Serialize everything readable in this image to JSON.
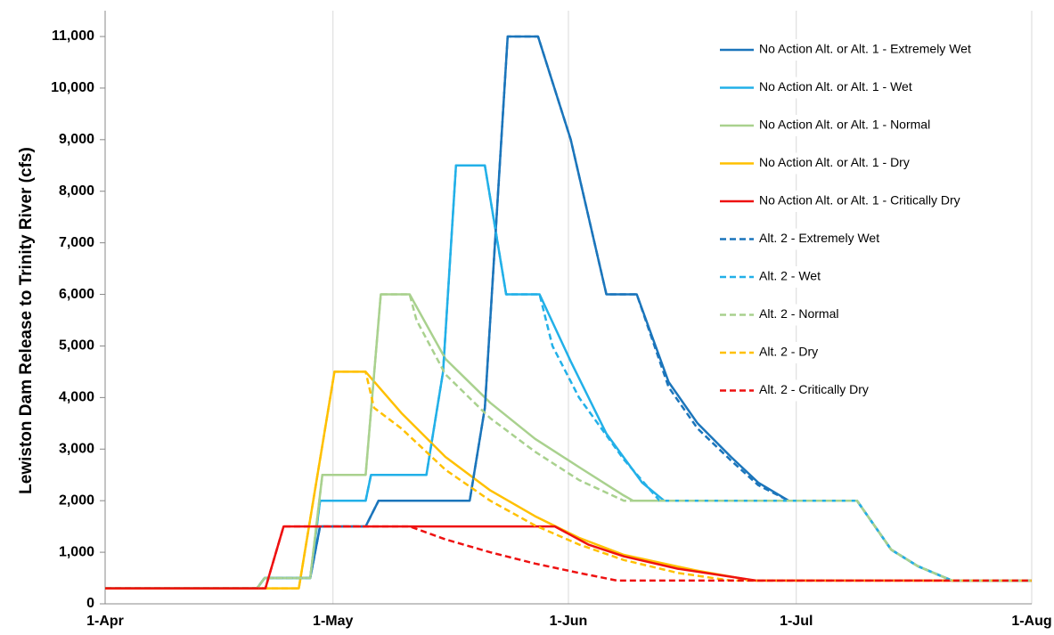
{
  "chart_data": {
    "type": "line",
    "y_label": "Lewiston Dam Release to Trinity River (cfs)",
    "xlim": [
      0,
      122
    ],
    "ylim": [
      0,
      11000
    ],
    "xticks": [
      {
        "value": 0,
        "label": "1-Apr"
      },
      {
        "value": 30,
        "label": "1-May"
      },
      {
        "value": 61,
        "label": "1-Jun"
      },
      {
        "value": 91,
        "label": "1-Jul"
      },
      {
        "value": 122,
        "label": "1-Aug"
      }
    ],
    "yticks": [
      0,
      {
        "value": 1000,
        "label": "1,000"
      },
      {
        "value": 2000,
        "label": "2,000"
      },
      {
        "value": 3000,
        "label": "3,000"
      },
      {
        "value": 4000,
        "label": "4,000"
      },
      {
        "value": 5000,
        "label": "5,000"
      },
      {
        "value": 6000,
        "label": "6,000"
      },
      {
        "value": 7000,
        "label": "7,000"
      },
      {
        "value": 8000,
        "label": "8,000"
      },
      {
        "value": 9000,
        "label": "9,000"
      },
      {
        "value": 10000,
        "label": "10,000"
      },
      {
        "value": 11000,
        "label": "11,000"
      }
    ],
    "grid": "x",
    "legend": "top-right",
    "series": [
      {
        "name": "No Action Alt. or Alt. 1 - Extremely Wet",
        "color": "#1b75bb",
        "line_style": "solid",
        "x": [
          0,
          20,
          21,
          27,
          28.3,
          34.3,
          36,
          48,
          50,
          53,
          57,
          61.3,
          66,
          70,
          74.2,
          78,
          82.4,
          86,
          90,
          99,
          103.5,
          107,
          111.5,
          122
        ],
        "values": [
          300,
          300,
          500,
          500,
          1500,
          1500,
          2000,
          2000,
          3800,
          11000,
          11000,
          9000,
          6000,
          6000,
          4300,
          3500,
          2850,
          2350,
          2000,
          2000,
          1050,
          730,
          450,
          450
        ]
      },
      {
        "name": "No Action Alt. or Alt. 1 - Wet",
        "color": "#22b0e8",
        "line_style": "solid",
        "x": [
          0,
          20,
          21,
          27,
          28.3,
          34.3,
          35,
          42.3,
          44.5,
          46.2,
          50,
          52.8,
          57.2,
          61.3,
          66,
          70.7,
          73.6,
          99,
          103.5,
          107,
          111.5,
          122
        ],
        "values": [
          300,
          300,
          500,
          500,
          2000,
          2000,
          2500,
          2500,
          4500,
          8500,
          8500,
          6000,
          6000,
          4700,
          3300,
          2350,
          2000,
          2000,
          1050,
          730,
          450,
          450
        ]
      },
      {
        "name": "No Action Alt. or Alt. 1 - Normal",
        "color": "#a9d18e",
        "line_style": "solid",
        "x": [
          0,
          20,
          21,
          27,
          28.6,
          34.3,
          36.3,
          40.1,
          44.8,
          50.7,
          56.6,
          62.4,
          68.3,
          69.5,
          99,
          103.5,
          107,
          111.5,
          122
        ],
        "values": [
          300,
          300,
          500,
          500,
          2500,
          2500,
          6000,
          6000,
          4750,
          3900,
          3200,
          2650,
          2100,
          2000,
          2000,
          1050,
          730,
          450,
          450
        ]
      },
      {
        "name": "No Action Alt. or Alt. 1 - Dry",
        "color": "#ffc000",
        "line_style": "solid",
        "x": [
          0,
          25.5,
          30.2,
          34.3,
          39,
          44.8,
          50.7,
          56.6,
          62.4,
          68.3,
          77.7,
          85.3,
          122
        ],
        "values": [
          300,
          300,
          4500,
          4500,
          3700,
          2850,
          2200,
          1700,
          1280,
          950,
          650,
          450,
          450
        ]
      },
      {
        "name": "No Action Alt. or Alt. 1 - Critically Dry",
        "color": "#ee1111",
        "line_style": "solid",
        "x": [
          0,
          21.1,
          23.5,
          59.2,
          63.6,
          68.3,
          75.4,
          85.7,
          122
        ],
        "values": [
          300,
          300,
          1500,
          1500,
          1150,
          920,
          680,
          450,
          450
        ]
      },
      {
        "name": "Alt. 2 - Extremely Wet",
        "color": "#1b75bb",
        "line_style": "dashed",
        "x": [
          0,
          20,
          21,
          27,
          28.3,
          34.3,
          36,
          48,
          50,
          53,
          57,
          61.3,
          66,
          70,
          74.2,
          78,
          82.4,
          86,
          90,
          99,
          103.5,
          107,
          111.5,
          122
        ],
        "values": [
          300,
          300,
          500,
          500,
          1500,
          1500,
          2000,
          2000,
          3800,
          11000,
          11000,
          9000,
          6000,
          6000,
          4200,
          3400,
          2780,
          2300,
          2000,
          2000,
          1050,
          730,
          450,
          450
        ]
      },
      {
        "name": "Alt. 2 - Wet",
        "color": "#22b0e8",
        "line_style": "dashed",
        "x": [
          0,
          20,
          21,
          27,
          28.3,
          34.3,
          35,
          42.3,
          44.5,
          46.2,
          50,
          52.8,
          57.2,
          58.9,
          62.4,
          68.3,
          73,
          99,
          103.5,
          107,
          111.5,
          122
        ],
        "values": [
          300,
          300,
          500,
          500,
          2000,
          2000,
          2500,
          2500,
          4500,
          8500,
          8500,
          6000,
          6000,
          5000,
          4000,
          2800,
          2000,
          2000,
          1050,
          730,
          450,
          450
        ]
      },
      {
        "name": "Alt. 2 - Normal",
        "color": "#a9d18e",
        "line_style": "dashed",
        "x": [
          0,
          20,
          21,
          27,
          28.6,
          34.3,
          36.3,
          40.1,
          41,
          44.8,
          50.7,
          56.6,
          62.4,
          68.3,
          99,
          103.5,
          107,
          111.5,
          122
        ],
        "values": [
          300,
          300,
          500,
          500,
          2500,
          2500,
          6000,
          6000,
          5500,
          4450,
          3600,
          2950,
          2400,
          2000,
          2000,
          1050,
          730,
          450,
          450
        ]
      },
      {
        "name": "Alt. 2 - Dry",
        "color": "#ffc000",
        "line_style": "dashed",
        "x": [
          0,
          25.5,
          30.2,
          34.3,
          35.4,
          39,
          44.8,
          50.7,
          56.6,
          62.4,
          68.3,
          75.4,
          82.4,
          122
        ],
        "values": [
          300,
          300,
          4500,
          4500,
          3800,
          3400,
          2600,
          2000,
          1520,
          1150,
          850,
          600,
          450,
          450
        ]
      },
      {
        "name": "Alt. 2 - Critically Dry",
        "color": "#ee1111",
        "line_style": "dashed",
        "x": [
          0,
          21.1,
          23.5,
          40.1,
          44.8,
          50.7,
          56.6,
          62.4,
          67.4,
          122
        ],
        "values": [
          300,
          300,
          1500,
          1500,
          1250,
          1000,
          780,
          600,
          450,
          450
        ]
      }
    ]
  }
}
